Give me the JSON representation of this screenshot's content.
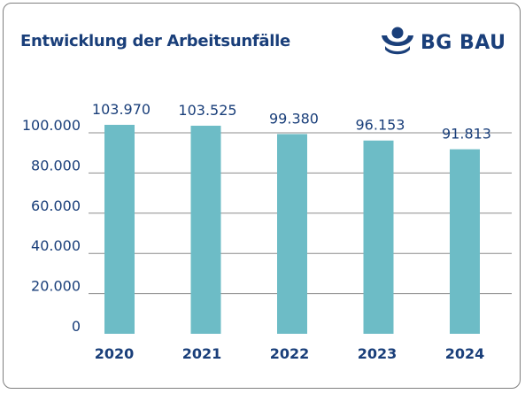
{
  "header": {
    "title": "Entwicklung der Arbeitsunfälle",
    "logo_text": "BG BAU",
    "logo_icon": "bg-bau-person-icon"
  },
  "colors": {
    "bar": "#6dbcc6",
    "text": "#1a3f7a",
    "grid": "#8c8c8c"
  },
  "chart_data": {
    "type": "bar",
    "title": "Entwicklung der Arbeitsunfälle",
    "categories": [
      "2020",
      "2021",
      "2022",
      "2023",
      "2024"
    ],
    "values": [
      103970,
      103525,
      99380,
      96153,
      91813
    ],
    "data_labels": [
      "103.970",
      "103.525",
      "99.380",
      "96.153",
      "91.813"
    ],
    "yticks": [
      0,
      20000,
      40000,
      60000,
      80000,
      100000
    ],
    "ytick_labels": [
      "0",
      "20.000",
      "40.000",
      "60.000",
      "80.000",
      "100.000"
    ],
    "ylim": [
      0,
      100000
    ],
    "grid": true,
    "legend": "none"
  }
}
